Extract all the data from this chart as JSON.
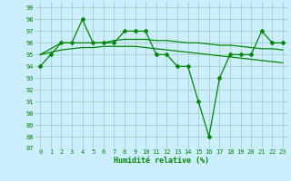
{
  "xlabel": "Humidité relative (%)",
  "bg_color": "#cceeff",
  "grid_color": "#99ccbb",
  "line_color": "#008800",
  "ylim": [
    87,
    99.5
  ],
  "xlim": [
    -0.5,
    23.5
  ],
  "yticks": [
    87,
    88,
    89,
    90,
    91,
    92,
    93,
    94,
    95,
    96,
    97,
    98,
    99
  ],
  "xticks": [
    0,
    1,
    2,
    3,
    4,
    5,
    6,
    7,
    8,
    9,
    10,
    11,
    12,
    13,
    14,
    15,
    16,
    17,
    18,
    19,
    20,
    21,
    22,
    23
  ],
  "series": [
    [
      94,
      95,
      96,
      96,
      98,
      96,
      96,
      96,
      97,
      97,
      97,
      95,
      95,
      94,
      94,
      91,
      88,
      93,
      95,
      95,
      95,
      97,
      96,
      96
    ],
    [
      95,
      95.2,
      95.4,
      95.5,
      95.6,
      95.6,
      95.7,
      95.7,
      95.7,
      95.7,
      95.6,
      95.5,
      95.4,
      95.3,
      95.2,
      95.1,
      95.0,
      94.9,
      94.8,
      94.7,
      94.6,
      94.5,
      94.4,
      94.3
    ],
    [
      95,
      95.5,
      96,
      96,
      96,
      96,
      96,
      96.2,
      96.3,
      96.3,
      96.3,
      96.2,
      96.2,
      96.1,
      96.0,
      96.0,
      95.9,
      95.8,
      95.8,
      95.7,
      95.6,
      95.5,
      95.5,
      95.4
    ]
  ],
  "marker": "D",
  "markersize": 2.0,
  "linewidth": 0.9
}
